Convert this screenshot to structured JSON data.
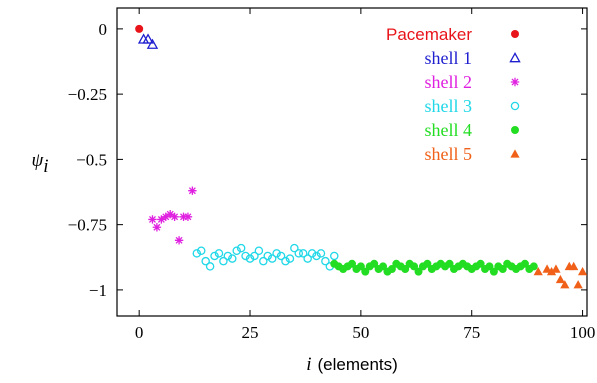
{
  "chart_data": {
    "type": "scatter",
    "title": "",
    "xlabel_italic": "i",
    "xlabel_rest": "(elements)",
    "ylabel_main": "ψ",
    "ylabel_sub": "i",
    "xlim": [
      -5,
      101
    ],
    "ylim": [
      -1.1,
      0.08
    ],
    "xticks": [
      {
        "value": 0,
        "label": "0"
      },
      {
        "value": 25,
        "label": "25"
      },
      {
        "value": 50,
        "label": "50"
      },
      {
        "value": 75,
        "label": "75"
      },
      {
        "value": 100,
        "label": "100"
      }
    ],
    "yticks": [
      {
        "value": 0,
        "label": "0"
      },
      {
        "value": -0.25,
        "label": "−0.25"
      },
      {
        "value": -0.5,
        "label": "−0.5"
      },
      {
        "value": -0.75,
        "label": "−0.75"
      },
      {
        "value": -1,
        "label": "−1"
      }
    ],
    "grid": false,
    "legend_position": "top-right",
    "series": [
      {
        "name": "Pacemaker",
        "color": "#e8141a",
        "marker": "filled-circle",
        "x": [
          0
        ],
        "y": [
          0.0
        ]
      },
      {
        "name": "shell 1",
        "color": "#1f1fd0",
        "marker": "open-triangle",
        "x": [
          1,
          2,
          3
        ],
        "y": [
          -0.04,
          -0.04,
          -0.06
        ]
      },
      {
        "name": "shell 2",
        "color": "#e020e0",
        "marker": "asterisk",
        "x": [
          3,
          4,
          5,
          6,
          7,
          8,
          9,
          10,
          11,
          12
        ],
        "y": [
          -0.73,
          -0.76,
          -0.73,
          -0.72,
          -0.71,
          -0.72,
          -0.81,
          -0.72,
          -0.72,
          -0.62
        ]
      },
      {
        "name": "shell 3",
        "color": "#20d8e8",
        "marker": "open-circle",
        "x": [
          13,
          14,
          15,
          16,
          17,
          18,
          19,
          20,
          21,
          22,
          23,
          24,
          25,
          26,
          27,
          28,
          29,
          30,
          31,
          32,
          33,
          34,
          35,
          36,
          37,
          38,
          39,
          40,
          41,
          42,
          43,
          44
        ],
        "y": [
          -0.86,
          -0.85,
          -0.89,
          -0.91,
          -0.87,
          -0.86,
          -0.89,
          -0.87,
          -0.88,
          -0.85,
          -0.84,
          -0.87,
          -0.88,
          -0.87,
          -0.85,
          -0.89,
          -0.87,
          -0.88,
          -0.86,
          -0.87,
          -0.89,
          -0.88,
          -0.84,
          -0.86,
          -0.86,
          -0.88,
          -0.86,
          -0.87,
          -0.86,
          -0.89,
          -0.91,
          -0.87
        ]
      },
      {
        "name": "shell 4",
        "color": "#22dd22",
        "marker": "filled-circle",
        "x": [
          44,
          45,
          46,
          47,
          48,
          49,
          50,
          51,
          52,
          53,
          54,
          55,
          56,
          57,
          58,
          59,
          60,
          61,
          62,
          63,
          64,
          65,
          66,
          67,
          68,
          69,
          70,
          71,
          72,
          73,
          74,
          75,
          76,
          77,
          78,
          79,
          80,
          81,
          82,
          83,
          84,
          85,
          86,
          87,
          88,
          89
        ],
        "y": [
          -0.9,
          -0.91,
          -0.92,
          -0.91,
          -0.9,
          -0.92,
          -0.91,
          -0.93,
          -0.91,
          -0.9,
          -0.92,
          -0.91,
          -0.93,
          -0.92,
          -0.9,
          -0.91,
          -0.92,
          -0.9,
          -0.91,
          -0.93,
          -0.91,
          -0.9,
          -0.92,
          -0.91,
          -0.9,
          -0.91,
          -0.9,
          -0.92,
          -0.91,
          -0.9,
          -0.91,
          -0.92,
          -0.91,
          -0.9,
          -0.92,
          -0.91,
          -0.93,
          -0.91,
          -0.92,
          -0.9,
          -0.91,
          -0.92,
          -0.91,
          -0.9,
          -0.92,
          -0.91
        ]
      },
      {
        "name": "shell 5",
        "color": "#f06018",
        "marker": "filled-triangle",
        "x": [
          90,
          92,
          93,
          94,
          95,
          96,
          97,
          98,
          99,
          100
        ],
        "y": [
          -0.93,
          -0.92,
          -0.93,
          -0.92,
          -0.96,
          -0.98,
          -0.91,
          -0.91,
          -0.98,
          -0.93
        ]
      }
    ]
  }
}
